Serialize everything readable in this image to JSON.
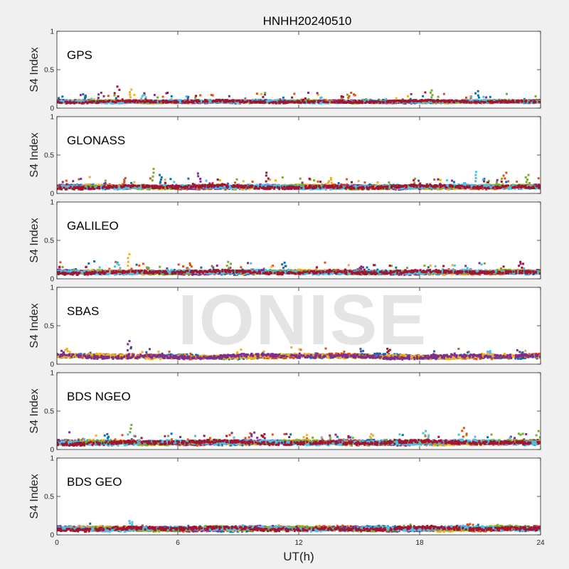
{
  "figure_title": "HNHH20240510",
  "watermark": "IONISE",
  "colors": {
    "background": "#f0f0f0",
    "axes_face": "#ffffff",
    "series": [
      "#0072BD",
      "#D95319",
      "#EDB120",
      "#7E2F8E",
      "#77AC30",
      "#4DBEEE",
      "#A2142F"
    ]
  },
  "chart_data": [
    {
      "type": "scatter",
      "panel_label": "GPS",
      "ylabel": "S4 Index",
      "xlabel": "",
      "xlim": [
        0,
        24
      ],
      "ylim": [
        0,
        1
      ],
      "xticks": [
        0,
        6,
        12,
        18,
        24
      ],
      "yticks": [
        0,
        0.5,
        1
      ],
      "ytick_labels": [
        "0",
        "0.5",
        "1"
      ],
      "series_count": 7,
      "baseline_s4": [
        0.06,
        0.11
      ],
      "max_s4": 0.3,
      "spikes": [
        [
          1.3,
          0.18
        ],
        [
          2.2,
          0.2
        ],
        [
          3.0,
          0.28
        ],
        [
          3.7,
          0.24
        ],
        [
          4.3,
          0.17
        ],
        [
          14.6,
          0.2
        ],
        [
          18.6,
          0.23
        ],
        [
          20.9,
          0.22
        ]
      ]
    },
    {
      "type": "scatter",
      "panel_label": "GLONASS",
      "ylabel": "S4 Index",
      "xlabel": "",
      "xlim": [
        0,
        24
      ],
      "ylim": [
        0,
        1
      ],
      "xticks": [
        0,
        6,
        12,
        18,
        24
      ],
      "yticks": [
        0,
        0.5,
        1
      ],
      "ytick_labels": [
        "0",
        "0.5",
        "1"
      ],
      "series_count": 7,
      "baseline_s4": [
        0.05,
        0.12
      ],
      "max_s4": 0.32,
      "spikes": [
        [
          3.4,
          0.2
        ],
        [
          4.8,
          0.32
        ],
        [
          5.1,
          0.24
        ],
        [
          7.0,
          0.26
        ],
        [
          10.4,
          0.27
        ],
        [
          13.6,
          0.2
        ],
        [
          20.8,
          0.28
        ],
        [
          22.3,
          0.27
        ],
        [
          23.4,
          0.24
        ]
      ]
    },
    {
      "type": "scatter",
      "panel_label": "GALILEO",
      "ylabel": "S4 Index",
      "xlabel": "",
      "xlim": [
        0,
        24
      ],
      "ylim": [
        0,
        1
      ],
      "xticks": [
        0,
        6,
        12,
        18,
        24
      ],
      "yticks": [
        0,
        0.5,
        1
      ],
      "ytick_labels": [
        "0",
        "0.5",
        "1"
      ],
      "series_count": 7,
      "baseline_s4": [
        0.05,
        0.12
      ],
      "max_s4": 0.32,
      "spikes": [
        [
          3.6,
          0.32
        ],
        [
          3.0,
          0.2
        ],
        [
          6.6,
          0.2
        ],
        [
          8.5,
          0.22
        ],
        [
          11.3,
          0.21
        ],
        [
          15.1,
          0.16
        ],
        [
          23.0,
          0.22
        ]
      ]
    },
    {
      "type": "scatter",
      "panel_label": "SBAS",
      "ylabel": "S4 Index",
      "xlabel": "",
      "xlim": [
        0,
        24
      ],
      "ylim": [
        0,
        1
      ],
      "xticks": [
        0,
        6,
        12,
        18,
        24
      ],
      "yticks": [
        0,
        0.5,
        1
      ],
      "ytick_labels": [
        "0",
        "0.5",
        "1"
      ],
      "series_count": 4,
      "baseline_s4": [
        0.06,
        0.14
      ],
      "max_s4": 0.3,
      "spikes": [
        [
          3.6,
          0.3
        ],
        [
          16.4,
          0.2
        ],
        [
          0.5,
          0.2
        ],
        [
          21.5,
          0.17
        ]
      ]
    },
    {
      "type": "scatter",
      "panel_label": "BDS NGEO",
      "ylabel": "S4 Index",
      "xlabel": "",
      "xlim": [
        0,
        24
      ],
      "ylim": [
        0,
        1
      ],
      "xticks": [
        0,
        6,
        12,
        18,
        24
      ],
      "yticks": [
        0,
        0.5,
        1
      ],
      "ytick_labels": [
        "0",
        "0.5",
        "1"
      ],
      "series_count": 7,
      "baseline_s4": [
        0.05,
        0.13
      ],
      "max_s4": 0.32,
      "spikes": [
        [
          3.7,
          0.32
        ],
        [
          2.5,
          0.2
        ],
        [
          9.8,
          0.22
        ],
        [
          10.3,
          0.2
        ],
        [
          15.6,
          0.2
        ],
        [
          18.3,
          0.24
        ],
        [
          20.2,
          0.28
        ],
        [
          23.9,
          0.24
        ]
      ]
    },
    {
      "type": "scatter",
      "panel_label": "BDS GEO",
      "ylabel": "S4 Index",
      "xlabel": "UT(h)",
      "xlim": [
        0,
        24
      ],
      "ylim": [
        0,
        1
      ],
      "xticks": [
        0,
        6,
        12,
        18,
        24
      ],
      "yticks": [
        0,
        0.5,
        1
      ],
      "ytick_labels": [
        "0",
        "0.5",
        "1"
      ],
      "series_count": 7,
      "baseline_s4": [
        0.04,
        0.12
      ],
      "max_s4": 0.18,
      "spikes": [
        [
          3.6,
          0.18
        ],
        [
          20.5,
          0.14
        ]
      ]
    }
  ]
}
